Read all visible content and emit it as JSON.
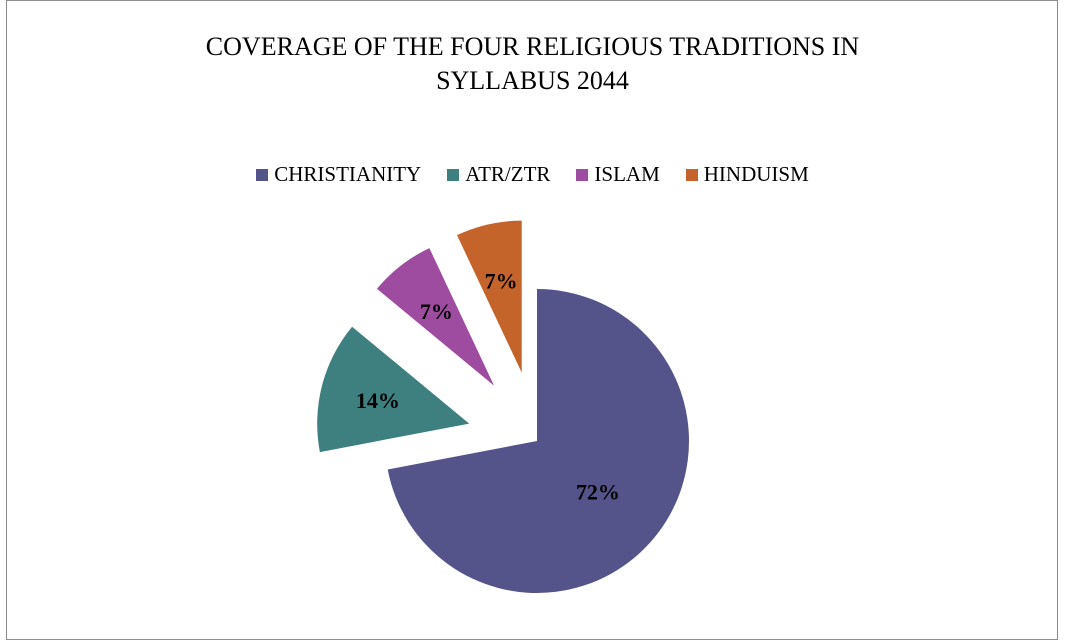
{
  "chart_data": {
    "type": "pie",
    "title": "COVERAGE OF THE FOUR RELIGIOUS TRADITIONS  IN\nSYLLABUS 2044",
    "legend_position": "top",
    "categories": [
      "CHRISTIANITY",
      "ATR/ZTR",
      "ISLAM",
      "HINDUISM"
    ],
    "values": [
      72,
      14,
      7,
      7
    ],
    "labels": [
      "72%",
      "14%",
      "7%",
      "7%"
    ],
    "colors": [
      "#55548a",
      "#3e7f80",
      "#9e4c9f",
      "#c4642a"
    ]
  }
}
